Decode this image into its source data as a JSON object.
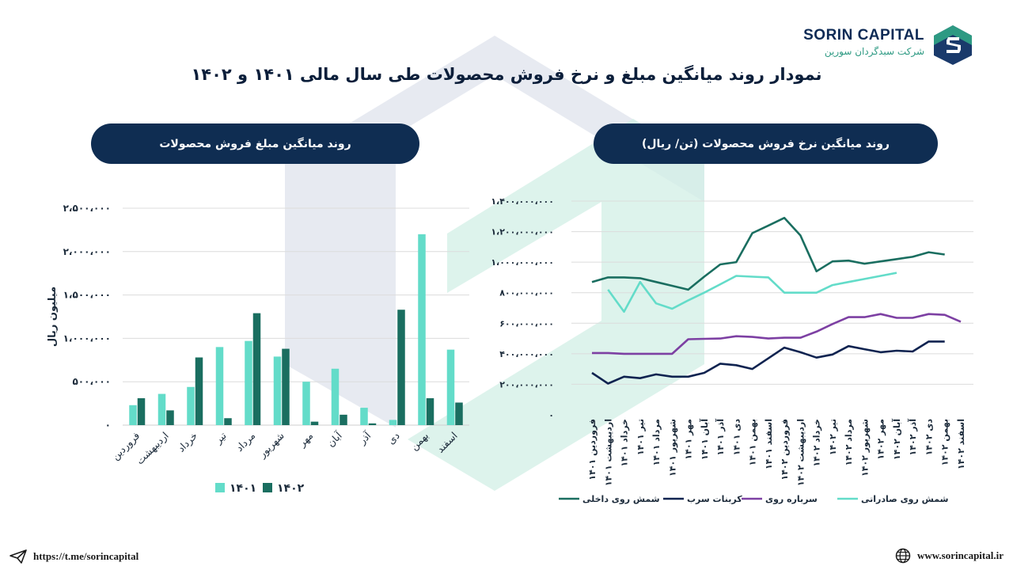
{
  "brand": {
    "name": "SORIN CAPITAL",
    "name_fa": "شرکت سبدگردان سورین"
  },
  "title": "نمودار روند میانگین مبلغ و نرخ فروش محصولات طی سال مالی ۱۴۰۱ و ۱۴۰۲",
  "colors": {
    "navy": "#0f2d52",
    "teal": "#1a6e60",
    "mint": "#63dcc9",
    "purple": "#7d40a3",
    "darknavy": "#0f2350"
  },
  "left_panel": {
    "title": "روند میانگین مبلغ فروش محصولات"
  },
  "right_panel": {
    "title": "روند میانگین نرخ فروش محصولات (تن/ ریال)"
  },
  "footer": {
    "telegram": "https://t.me/sorincapital",
    "website": "www.sorincapital.ir",
    "telegram_icon": "paper-plane-icon",
    "website_icon": "globe-icon"
  },
  "chart_data": [
    {
      "type": "bar",
      "title": "روند میانگین مبلغ فروش محصولات",
      "ylabel": "میلیون ریال",
      "ylim": [
        0,
        2500000
      ],
      "yticks": [
        0,
        500000,
        1000000,
        1500000,
        2000000,
        2500000
      ],
      "ytick_labels": [
        "۰",
        "۵۰۰،۰۰۰",
        "۱،۰۰۰،۰۰۰",
        "۱،۵۰۰،۰۰۰",
        "۲،۰۰۰،۰۰۰",
        "۲،۵۰۰،۰۰۰"
      ],
      "categories": [
        "فروردین",
        "اردیبهشت",
        "خرداد",
        "تیر",
        "مرداد",
        "شهریور",
        "مهر",
        "آبان",
        "آذر",
        "دی",
        "بهمن",
        "اسفند"
      ],
      "series": [
        {
          "name": "۱۴۰۱",
          "color": "#63dcc9",
          "values": [
            230000,
            360000,
            440000,
            900000,
            970000,
            790000,
            500000,
            650000,
            200000,
            60000,
            2200000,
            870000
          ]
        },
        {
          "name": "۱۴۰۲",
          "color": "#1a6e60",
          "values": [
            310000,
            170000,
            780000,
            80000,
            1290000,
            880000,
            40000,
            120000,
            20000,
            1330000,
            310000,
            260000
          ]
        }
      ],
      "grid": true,
      "legend": "bottom"
    },
    {
      "type": "line",
      "title": "روند میانگین نرخ فروش محصولات (تن/ ریال)",
      "ylim": [
        0,
        1400000000
      ],
      "yticks": [
        0,
        200000000,
        400000000,
        600000000,
        800000000,
        1000000000,
        1200000000,
        1400000000
      ],
      "ytick_labels": [
        "۰",
        "۲۰۰،۰۰۰،۰۰۰",
        "۴۰۰،۰۰۰،۰۰۰",
        "۶۰۰،۰۰۰،۰۰۰",
        "۸۰۰،۰۰۰،۰۰۰",
        "۱،۰۰۰،۰۰۰،۰۰۰",
        "۱،۲۰۰،۰۰۰،۰۰۰",
        "۱،۴۰۰،۰۰۰،۰۰۰"
      ],
      "categories": [
        "فروردین ۱۴۰۱",
        "اردیبهشت ۱۴۰۱",
        "خرداد ۱۴۰۱",
        "تیر ۱۴۰۱",
        "مرداد ۱۴۰۱",
        "شهریور ۱۴۰۱",
        "مهر ۱۴۰۱",
        "آبان ۱۴۰۱",
        "آذر ۱۴۰۱",
        "دی ۱۴۰۱",
        "بهمن ۱۴۰۱",
        "اسفند ۱۴۰۱",
        "فروردین ۱۴۰۲",
        "اردیبهشت ۱۴۰۲",
        "خرداد ۱۴۰۲",
        "تیر ۱۴۰۲",
        "مرداد ۱۴۰۲",
        "شهریور ۱۴۰۲",
        "مهر ۱۴۰۲",
        "آبان ۱۴۰۲",
        "آذر ۱۴۰۲",
        "دی ۱۴۰۲",
        "بهمن ۱۴۰۲",
        "اسفند ۱۴۰۲"
      ],
      "series": [
        {
          "name": "شمش روی داخلی",
          "color": "#1a6e60",
          "values": [
            870000000,
            900000000,
            900000000,
            895000000,
            870000000,
            845000000,
            820000000,
            905000000,
            985000000,
            1000000000,
            1190000000,
            1240000000,
            1290000000,
            1175000000,
            940000000,
            1005000000,
            1010000000,
            990000000,
            1005000000,
            1020000000,
            1035000000,
            1065000000,
            1050000000,
            null
          ]
        },
        {
          "name": "کربنات سرب",
          "color": "#0f2350",
          "values": [
            275000000,
            205000000,
            250000000,
            240000000,
            265000000,
            250000000,
            250000000,
            275000000,
            335000000,
            325000000,
            300000000,
            370000000,
            440000000,
            410000000,
            375000000,
            395000000,
            450000000,
            430000000,
            410000000,
            420000000,
            415000000,
            480000000,
            480000000,
            null
          ]
        },
        {
          "name": "سرباره روی",
          "color": "#7d40a3",
          "values": [
            405000000,
            405000000,
            400000000,
            400000000,
            400000000,
            400000000,
            495000000,
            498000000,
            500000000,
            515000000,
            510000000,
            500000000,
            505000000,
            505000000,
            545000000,
            595000000,
            640000000,
            640000000,
            660000000,
            635000000,
            635000000,
            660000000,
            655000000,
            610000000
          ]
        },
        {
          "name": "شمش روی صادراتی",
          "color": "#63dcc9",
          "values": [
            null,
            820000000,
            675000000,
            870000000,
            730000000,
            695000000,
            750000000,
            800000000,
            855000000,
            910000000,
            905000000,
            900000000,
            800000000,
            800000000,
            800000000,
            850000000,
            870000000,
            890000000,
            910000000,
            930000000,
            null,
            null,
            null,
            null
          ]
        }
      ],
      "grid": true,
      "legend": "bottom"
    }
  ]
}
